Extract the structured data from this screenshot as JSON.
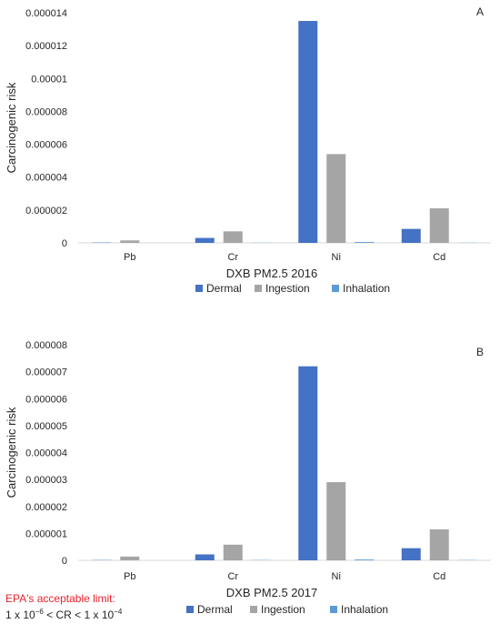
{
  "chart_data": [
    {
      "type": "bar",
      "panel_label": "A",
      "xlabel": "DXB PM2.5 2016",
      "ylabel": "Carcinogenic risk",
      "categories": [
        "Pb",
        "Cr",
        "Ni",
        "Cd"
      ],
      "ylim": [
        0,
        1.4e-05
      ],
      "yticks": [
        "0",
        "0.000002",
        "0.000004",
        "0.000006",
        "0.000008",
        "0.00001",
        "0.000012",
        "0.000014"
      ],
      "series": [
        {
          "name": "Dermal",
          "color": "#4472c4",
          "values": [
            2e-08,
            3e-07,
            1.35e-05,
            8.5e-07
          ]
        },
        {
          "name": "Ingestion",
          "color": "#a5a5a5",
          "values": [
            1.5e-07,
            7e-07,
            5.4e-06,
            2.1e-06
          ]
        },
        {
          "name": "Inhalation",
          "color": "#5b9bd5",
          "values": [
            0.0,
            1e-08,
            5e-08,
            1e-08
          ]
        }
      ],
      "legend": "bottom"
    },
    {
      "type": "bar",
      "panel_label": "B",
      "xlabel": "DXB PM2.5 2017",
      "ylabel": "Carcinogenic risk",
      "categories": [
        "Pb",
        "Cr",
        "Ni",
        "Cd"
      ],
      "ylim": [
        0,
        8e-06
      ],
      "yticks": [
        "0",
        "0.000001",
        "0.000002",
        "0.000003",
        "0.000004",
        "0.000005",
        "0.000006",
        "0.000007",
        "0.000008"
      ],
      "series": [
        {
          "name": "Dermal",
          "color": "#4472c4",
          "values": [
            1e-08,
            2.2e-07,
            7.2e-06,
            4.5e-07
          ]
        },
        {
          "name": "Ingestion",
          "color": "#a5a5a5",
          "values": [
            1.4e-07,
            5.8e-07,
            2.9e-06,
            1.15e-06
          ]
        },
        {
          "name": "Inhalation",
          "color": "#5b9bd5",
          "values": [
            0.0,
            1e-08,
            3e-08,
            1e-08
          ]
        }
      ],
      "legend": "bottom"
    }
  ],
  "annotation": {
    "title": "EPA's acceptable limit:",
    "formula_a": "1 x 10",
    "exp_a": "−6",
    "formula_mid": " < CR < 1 x 10",
    "exp_b": "−4"
  }
}
